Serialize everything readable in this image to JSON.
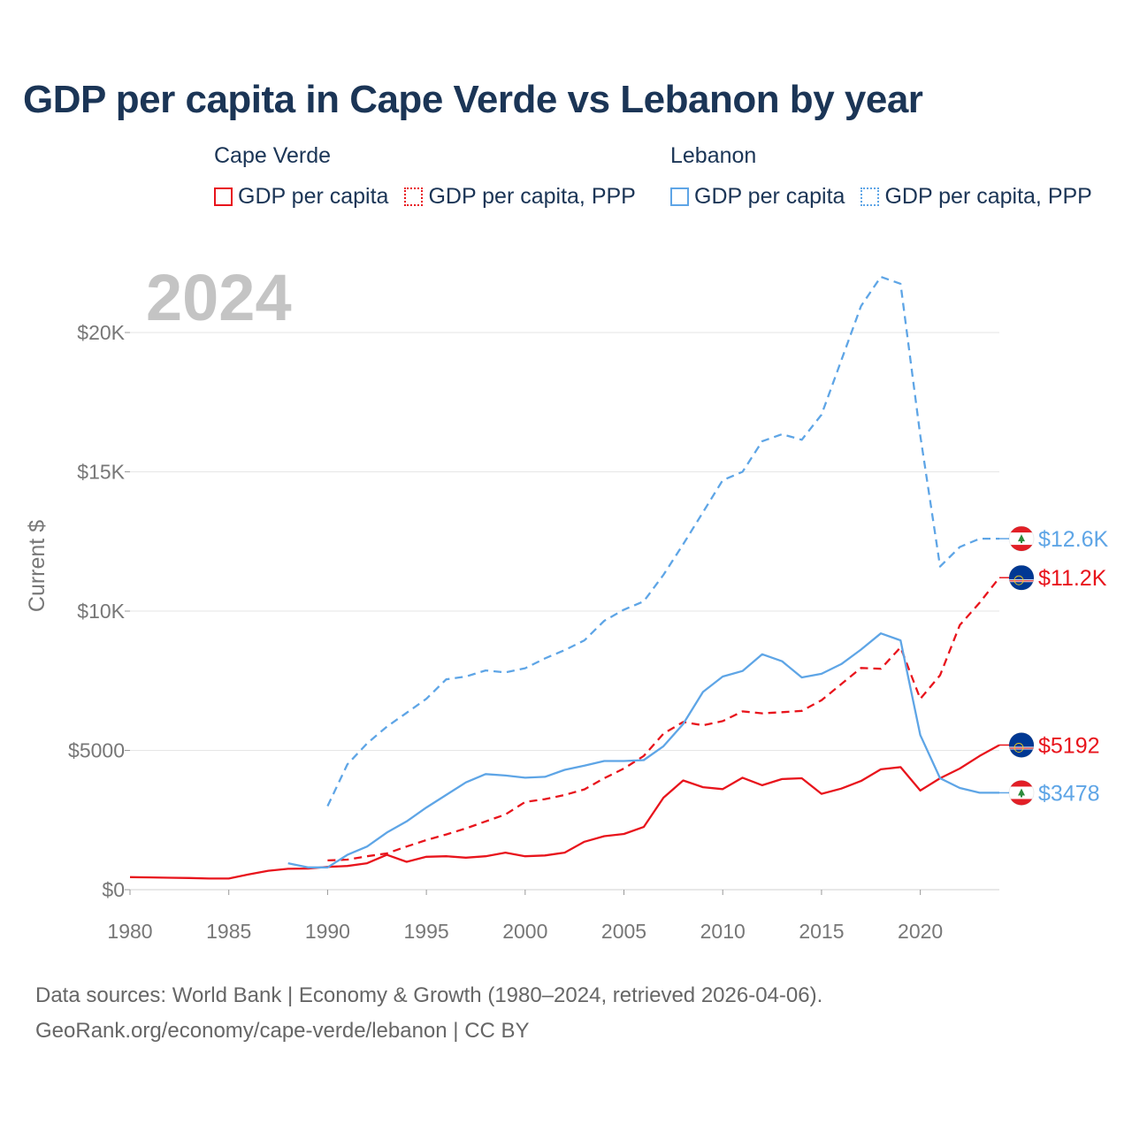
{
  "title": "GDP per capita in Cape Verde vs Lebanon by year",
  "legend": [
    {
      "country": "Cape Verde",
      "items": [
        {
          "label": "GDP per capita",
          "style": "solid",
          "color": "#e8141c"
        },
        {
          "label": "GDP per capita, PPP",
          "style": "dotted",
          "color": "#e8141c"
        }
      ]
    },
    {
      "country": "Lebanon",
      "items": [
        {
          "label": "GDP per capita",
          "style": "solid",
          "color": "#5ea5e6"
        },
        {
          "label": "GDP per capita, PPP",
          "style": "dotted",
          "color": "#5ea5e6"
        }
      ]
    }
  ],
  "chart_data": {
    "type": "line",
    "watermark_year": "2024",
    "ylabel": "Current $",
    "xlim": [
      1980,
      2024
    ],
    "ylim": [
      0,
      22000
    ],
    "x_ticks": [
      1980,
      1985,
      1990,
      1995,
      2000,
      2005,
      2010,
      2015,
      2020
    ],
    "y_ticks": [
      {
        "value": 0,
        "label": "$0"
      },
      {
        "value": 5000,
        "label": "$5000"
      },
      {
        "value": 10000,
        "label": "$10K"
      },
      {
        "value": 15000,
        "label": "$15K"
      },
      {
        "value": 20000,
        "label": "$20K"
      }
    ],
    "grid": true,
    "series": [
      {
        "name": "Cape Verde GDP per capita",
        "country": "Cape Verde",
        "flag": "cape-verde",
        "color": "#e8141c",
        "dash": false,
        "end_label": "$5192",
        "x": [
          1980,
          1981,
          1982,
          1983,
          1984,
          1985,
          1986,
          1987,
          1988,
          1989,
          1990,
          1991,
          1992,
          1993,
          1994,
          1995,
          1996,
          1997,
          1998,
          1999,
          2000,
          2001,
          2002,
          2003,
          2004,
          2005,
          2006,
          2007,
          2008,
          2009,
          2010,
          2011,
          2012,
          2013,
          2014,
          2015,
          2016,
          2017,
          2018,
          2019,
          2020,
          2021,
          2022,
          2023,
          2024
        ],
        "y": [
          450,
          440,
          430,
          420,
          400,
          400,
          550,
          680,
          750,
          760,
          820,
          850,
          950,
          1250,
          1000,
          1180,
          1200,
          1150,
          1200,
          1330,
          1200,
          1230,
          1330,
          1720,
          1920,
          2000,
          2250,
          3300,
          3920,
          3680,
          3610,
          4020,
          3750,
          3970,
          4000,
          3440,
          3630,
          3900,
          4320,
          4400,
          3560,
          4000,
          4350,
          4800,
          5192
        ]
      },
      {
        "name": "Cape Verde GDP per capita, PPP",
        "country": "Cape Verde",
        "flag": "cape-verde",
        "color": "#e8141c",
        "dash": true,
        "end_label": "$11.2K",
        "x": [
          1990,
          1991,
          1992,
          1993,
          1994,
          1995,
          1996,
          1997,
          1998,
          1999,
          2000,
          2001,
          2002,
          2003,
          2004,
          2005,
          2006,
          2007,
          2008,
          2009,
          2010,
          2011,
          2012,
          2013,
          2014,
          2015,
          2016,
          2017,
          2018,
          2019,
          2020,
          2021,
          2022,
          2023,
          2024
        ],
        "y": [
          1050,
          1080,
          1200,
          1300,
          1550,
          1780,
          1980,
          2200,
          2450,
          2700,
          3150,
          3250,
          3400,
          3600,
          4000,
          4350,
          4800,
          5600,
          6020,
          5900,
          6050,
          6400,
          6330,
          6370,
          6420,
          6800,
          7380,
          7960,
          7930,
          8700,
          6850,
          7700,
          9500,
          10300,
          11200
        ]
      },
      {
        "name": "Lebanon GDP per capita",
        "country": "Lebanon",
        "flag": "lebanon",
        "color": "#5ea5e6",
        "dash": false,
        "end_label": "$3478",
        "x": [
          1988,
          1989,
          1990,
          1991,
          1992,
          1993,
          1994,
          1995,
          1996,
          1997,
          1998,
          1999,
          2000,
          2001,
          2002,
          2003,
          2004,
          2005,
          2006,
          2007,
          2008,
          2009,
          2010,
          2011,
          2012,
          2013,
          2014,
          2015,
          2016,
          2017,
          2018,
          2019,
          2020,
          2021,
          2022,
          2023,
          2024
        ],
        "y": [
          950,
          800,
          800,
          1250,
          1550,
          2050,
          2450,
          2950,
          3400,
          3850,
          4150,
          4100,
          4020,
          4050,
          4300,
          4450,
          4620,
          4620,
          4650,
          5150,
          5950,
          7100,
          7650,
          7850,
          8450,
          8200,
          7620,
          7750,
          8100,
          8620,
          9200,
          8950,
          5550,
          4000,
          3650,
          3478,
          3478
        ]
      },
      {
        "name": "Lebanon GDP per capita, PPP",
        "country": "Lebanon",
        "flag": "lebanon",
        "color": "#5ea5e6",
        "dash": true,
        "end_label": "$12.6K",
        "x": [
          1990,
          1991,
          1992,
          1993,
          1994,
          1995,
          1996,
          1997,
          1998,
          1999,
          2000,
          2001,
          2002,
          2003,
          2004,
          2005,
          2006,
          2007,
          2008,
          2009,
          2010,
          2011,
          2012,
          2013,
          2014,
          2015,
          2016,
          2017,
          2018,
          2019,
          2020,
          2021,
          2022,
          2023,
          2024
        ],
        "y": [
          3000,
          4500,
          5250,
          5850,
          6350,
          6850,
          7550,
          7650,
          7870,
          7800,
          7950,
          8300,
          8600,
          8950,
          9650,
          10050,
          10350,
          11300,
          12400,
          13550,
          14700,
          15000,
          16100,
          16350,
          16150,
          17050,
          19000,
          20950,
          22000,
          21750,
          16300,
          11600,
          12300,
          12600,
          12600
        ]
      }
    ]
  },
  "source": {
    "line1": "Data sources: World Bank | Economy & Growth (1980–2024, retrieved 2026-04-06).",
    "line2": "GeoRank.org/economy/cape-verde/lebanon | CC BY"
  }
}
